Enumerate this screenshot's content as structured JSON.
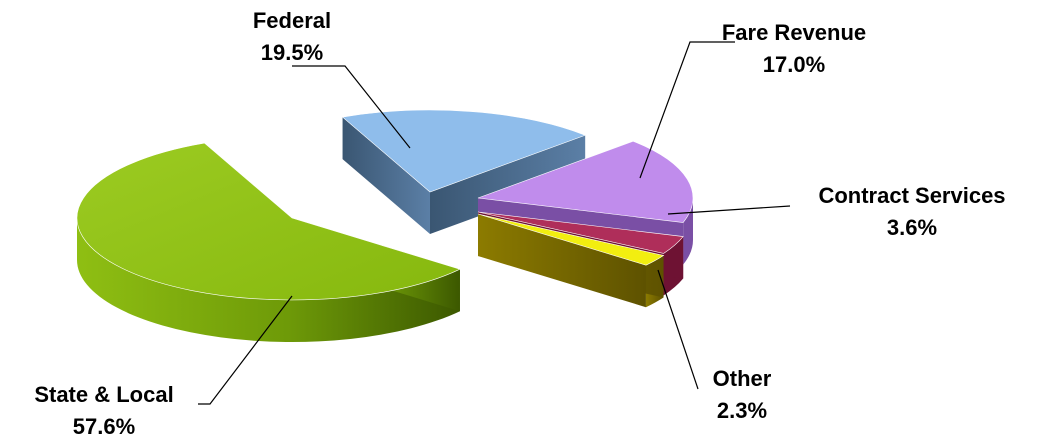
{
  "chart_data": {
    "type": "pie",
    "title": "",
    "style": "3d-exploded",
    "slices": [
      {
        "name": "Federal",
        "value": 19.5,
        "value_label": "19.5%",
        "color": "#8FBDEB",
        "side_color": "#3E5C7E"
      },
      {
        "name": "Fare Revenue",
        "value": 17.0,
        "value_label": "17.0%",
        "color": "#C08CEC",
        "side_color": "#7A4FA5"
      },
      {
        "name": "Contract Services",
        "value": 3.6,
        "value_label": "3.6%",
        "color": "#AF2E5A",
        "side_color": "#6E1233"
      },
      {
        "name": "Other",
        "value": 2.3,
        "value_label": "2.3%",
        "color": "#F2EE10",
        "side_color": "#7E6F00"
      },
      {
        "name": "State & Local",
        "value": 57.6,
        "value_label": "57.6%",
        "color": "#8FBF13",
        "side_color": "#4E7000"
      }
    ]
  }
}
